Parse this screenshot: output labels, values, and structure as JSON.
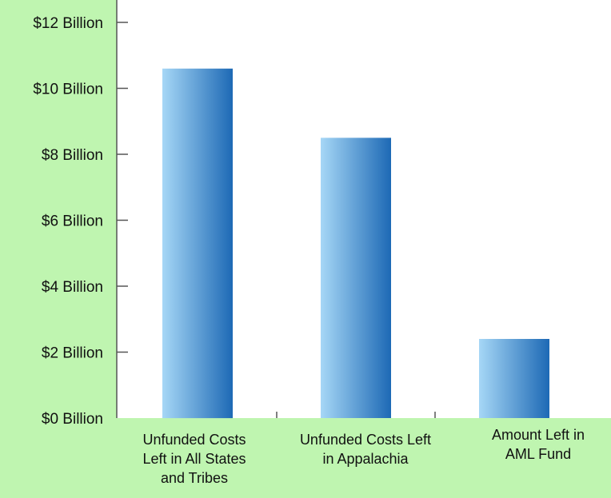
{
  "chart_data": {
    "type": "bar",
    "title": "",
    "xlabel": "",
    "ylabel": "",
    "ylim": [
      0,
      12
    ],
    "y_ticks": [
      0,
      2,
      4,
      6,
      8,
      10,
      12
    ],
    "y_tick_labels": [
      "$0 Billion",
      "$2 Billion",
      "$4 Billion",
      "$6 Billion",
      "$8 Billion",
      "$10 Billion",
      "$12 Billion"
    ],
    "categories": [
      [
        "Unfunded Costs",
        "Left in All States",
        "and Tribes"
      ],
      [
        "Unfunded Costs Left",
        "in Appalachia"
      ],
      [
        "Amount Left in",
        "AML Fund"
      ]
    ],
    "values": [
      10.6,
      8.5,
      2.4
    ],
    "grid": false,
    "legend": "none"
  },
  "colors": {
    "background_panel": "#bff5b0",
    "plot_background": "#ffffff",
    "bar_light": "#a6d7f6",
    "bar_dark": "#1d69b5",
    "axis": "#555555",
    "text": "#111111"
  }
}
